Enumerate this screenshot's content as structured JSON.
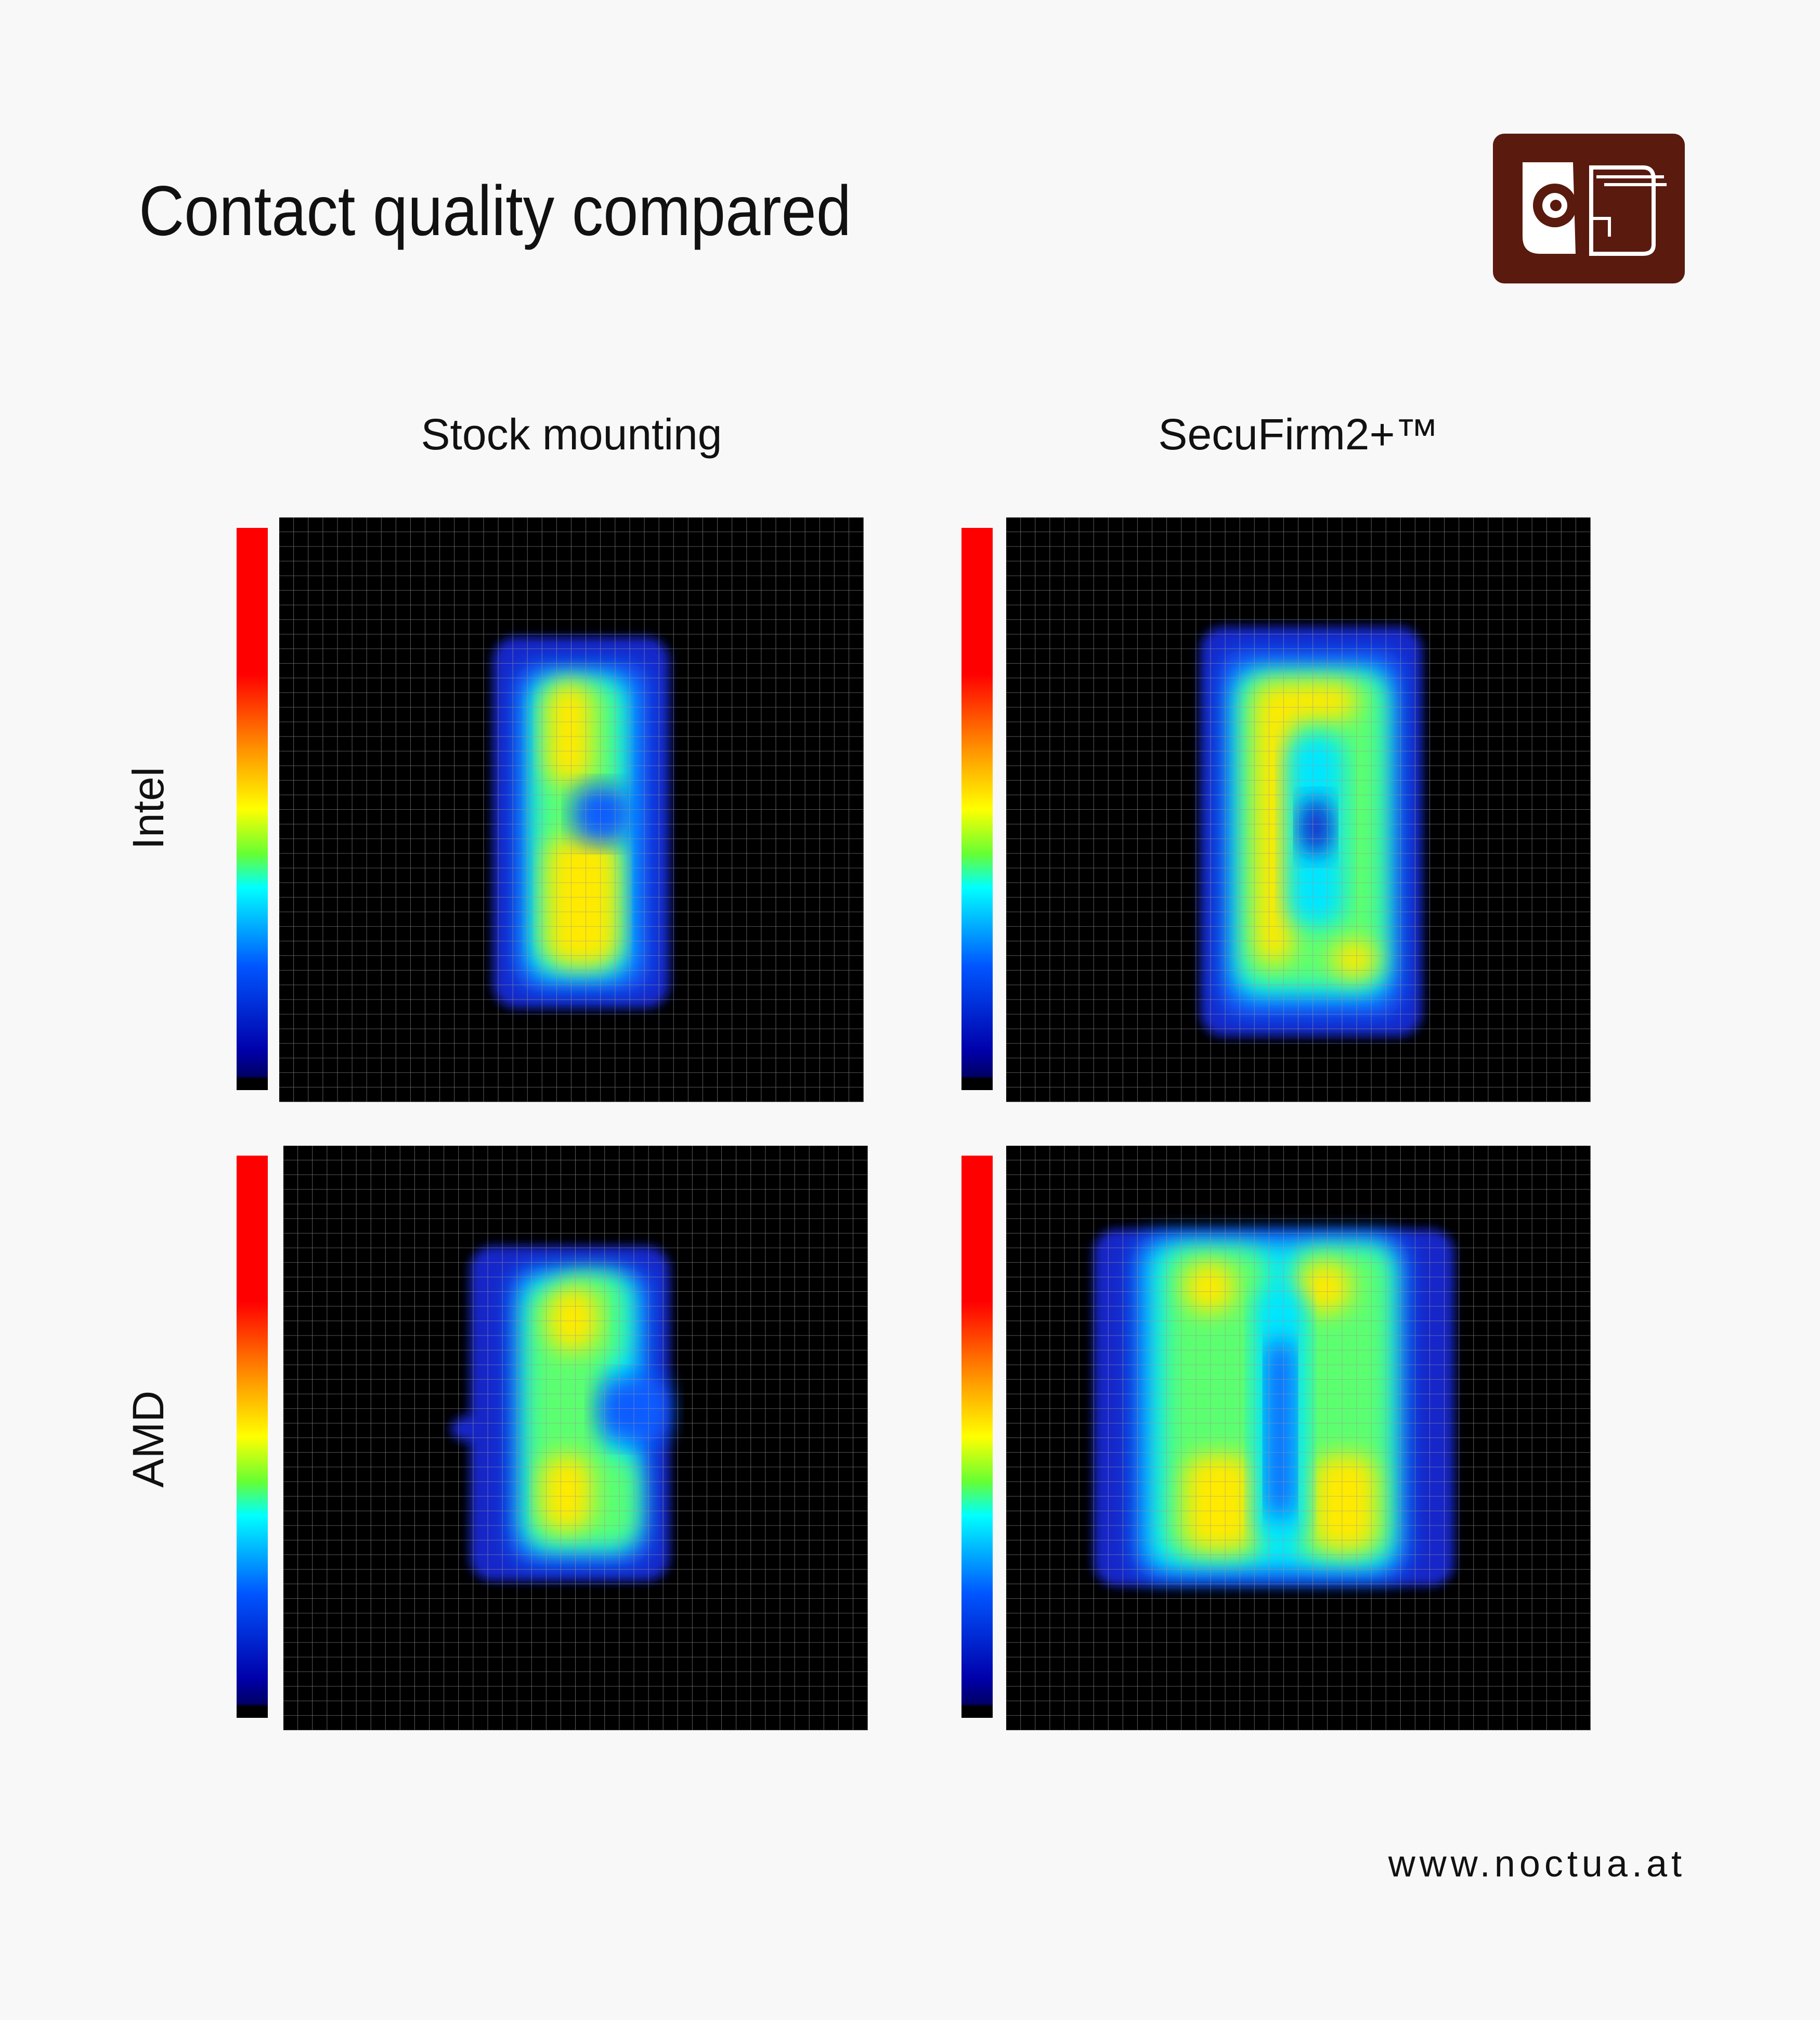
{
  "header": {
    "title": "Contact quality compared"
  },
  "columns": [
    "Stock mounting",
    "SecuFirm2+™"
  ],
  "rows": [
    "Intel",
    "AMD"
  ],
  "footer": {
    "url": "www.noctua.at"
  }
}
